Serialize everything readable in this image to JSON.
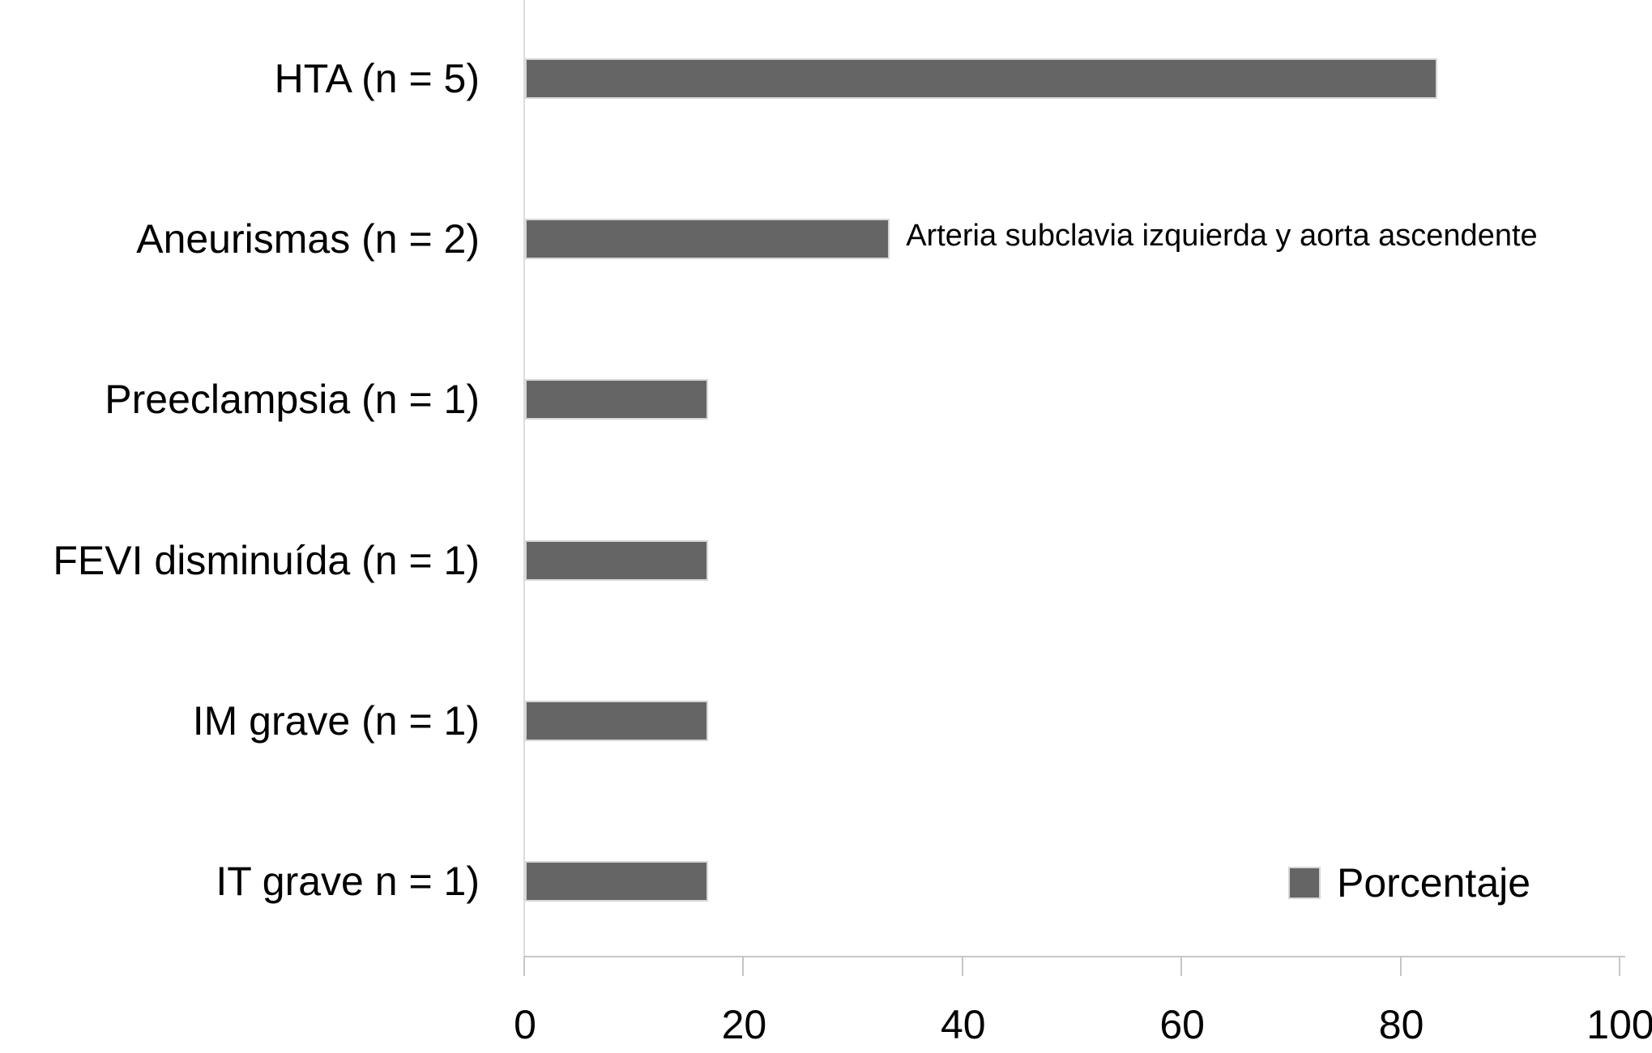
{
  "chart_data": {
    "type": "bar",
    "orientation": "horizontal",
    "categories": [
      "HTA (n = 5)",
      "Aneurismas (n = 2)",
      "Preeclampsia (n = 1)",
      "FEVI disminuída (n = 1)",
      "IM grave (n = 1)",
      "IT grave n = 1)"
    ],
    "series": [
      {
        "name": "Porcentaje",
        "values": [
          83.3,
          33.3,
          16.7,
          16.7,
          16.7,
          16.7
        ]
      }
    ],
    "xlabel": "",
    "ylabel": "",
    "title": "",
    "xlim": [
      0,
      100
    ],
    "x_ticks": [
      0,
      20,
      40,
      60,
      80,
      100
    ],
    "grid": false,
    "annotation": {
      "category_index": 1,
      "text": "Arteria subclavia izquierda y aorta ascendente"
    },
    "legend": {
      "label": "Porcentaje",
      "position": "bottom-right"
    },
    "colors": {
      "bar": "#656565",
      "bar_border": "#d6d6d6",
      "axis_line": "#c6c6c6",
      "y_axis_line": "#dcdcdc",
      "text": "#000000"
    }
  }
}
